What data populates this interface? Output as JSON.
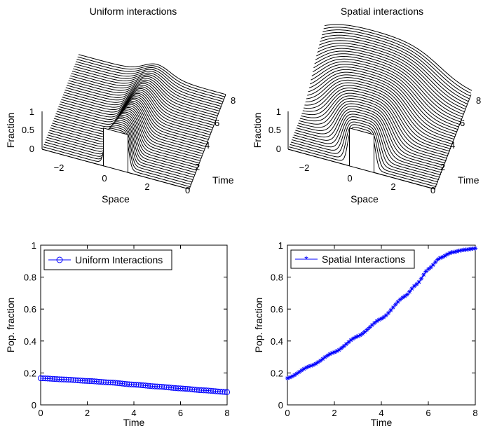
{
  "panels": {
    "top_left": {
      "title": "Uniform interactions",
      "zlabel": "Fraction",
      "xlabel": "Space",
      "ylabel": "Time",
      "zticks": [
        "0",
        "0.5",
        "1"
      ],
      "xticks": [
        "−2",
        "0",
        "2"
      ],
      "yticks": [
        "0",
        "2",
        "4",
        "6",
        "8"
      ]
    },
    "top_right": {
      "title": "Spatial interactions",
      "zlabel": "Fraction",
      "xlabel": "Space",
      "ylabel": "Time",
      "zticks": [
        "0",
        "0.5",
        "1"
      ],
      "xticks": [
        "−2",
        "0",
        "2"
      ],
      "yticks": [
        "0",
        "2",
        "4",
        "6",
        "8"
      ]
    },
    "bottom_left": {
      "legend": "Uniform Interactions",
      "xlabel": "Time",
      "ylabel": "Pop. fraction",
      "xticks": [
        "0",
        "2",
        "4",
        "6",
        "8"
      ],
      "yticks": [
        "0",
        "0.2",
        "0.4",
        "0.6",
        "0.8",
        "1"
      ]
    },
    "bottom_right": {
      "legend": "Spatial Interactions",
      "xlabel": "Time",
      "ylabel": "Pop. fraction",
      "xticks": [
        "0",
        "2",
        "4",
        "6",
        "8"
      ],
      "yticks": [
        "0",
        "0.2",
        "0.4",
        "0.6",
        "0.8",
        "1"
      ]
    }
  },
  "colors": {
    "series": "#0000ff",
    "axes": "#000000"
  },
  "chart_data": [
    {
      "type": "area",
      "title": "Uniform interactions",
      "xlabel": "Space",
      "ylabel": "Time",
      "zlabel": "Fraction",
      "xlim": [
        -3,
        3
      ],
      "ylim": [
        0,
        8
      ],
      "zlim": [
        0,
        1
      ],
      "initial_profile": {
        "x_start": -0.5,
        "x_end": 0.5,
        "height": 1
      },
      "final_profile": {
        "x_start": -0.5,
        "x_end": 0.5,
        "height": 0.45
      }
    },
    {
      "type": "area",
      "title": "Spatial interactions",
      "xlabel": "Space",
      "ylabel": "Time",
      "zlabel": "Fraction",
      "xlim": [
        -3,
        3
      ],
      "ylim": [
        0,
        8
      ],
      "zlim": [
        0,
        1
      ],
      "initial_profile": {
        "x_start": -0.5,
        "x_end": 0.5,
        "height": 1
      },
      "final_profile": {
        "shape": "broad sigmoid spread",
        "height": 1
      }
    },
    {
      "type": "line",
      "xlabel": "Time",
      "ylabel": "Pop. fraction",
      "xlim": [
        0,
        8
      ],
      "ylim": [
        0,
        1
      ],
      "series": [
        {
          "name": "Uniform Interactions",
          "marker": "circle",
          "x": [
            0,
            1,
            2,
            3,
            4,
            5,
            6,
            7,
            8
          ],
          "y": [
            0.167,
            0.159,
            0.15,
            0.14,
            0.127,
            0.115,
            0.103,
            0.091,
            0.08
          ]
        }
      ]
    },
    {
      "type": "line",
      "xlabel": "Time",
      "ylabel": "Pop. fraction",
      "xlim": [
        0,
        8
      ],
      "ylim": [
        0,
        1
      ],
      "series": [
        {
          "name": "Spatial Interactions",
          "marker": "star",
          "x": [
            0,
            1,
            2,
            3,
            4,
            5,
            5.5,
            6,
            6.5,
            7,
            7.5,
            8
          ],
          "y": [
            0.167,
            0.245,
            0.33,
            0.43,
            0.54,
            0.68,
            0.755,
            0.85,
            0.92,
            0.955,
            0.97,
            0.98
          ]
        }
      ]
    }
  ]
}
